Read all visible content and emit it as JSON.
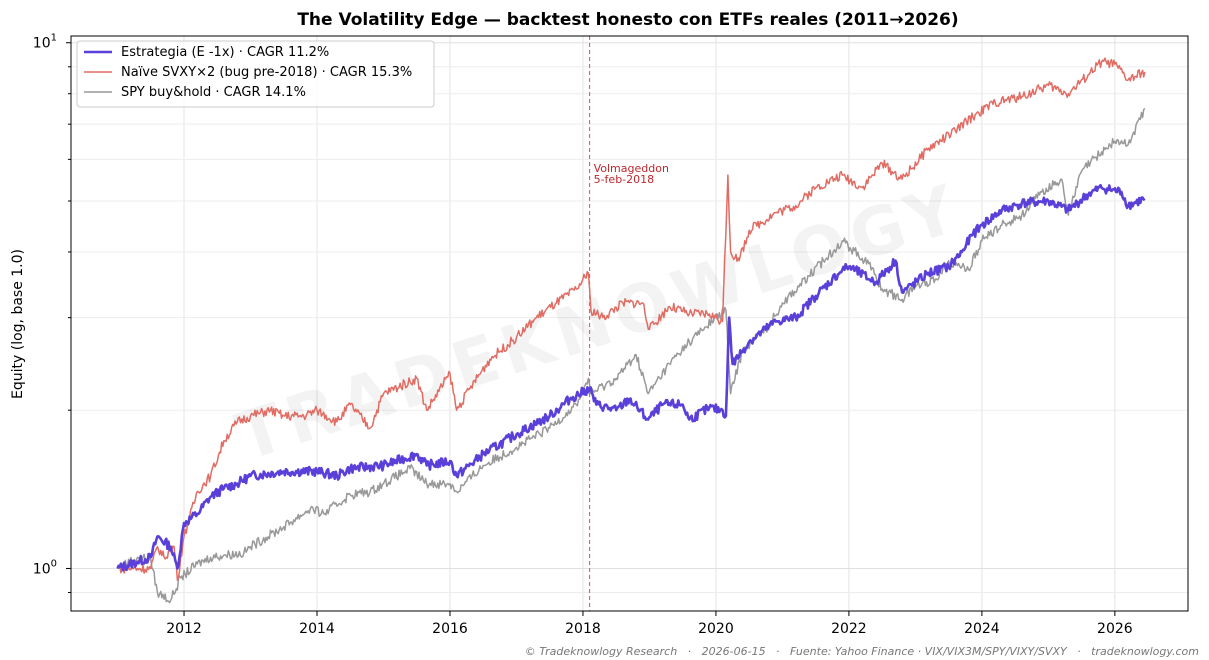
{
  "chart_data": {
    "type": "line",
    "title": "The Volatility Edge — backtest honesto con ETFs reales (2011→2026)",
    "ylabel": "Equity (log, base 1.0)",
    "xlabel": "",
    "y_scale": "log",
    "xlim": [
      2010.3,
      2027.1
    ],
    "ylim": [
      0.83,
      10.3
    ],
    "x_ticks": [
      2012,
      2014,
      2016,
      2018,
      2020,
      2022,
      2024,
      2026
    ],
    "y_ticks": [
      {
        "value": 1,
        "base": "10",
        "exp": "0"
      },
      {
        "value": 10,
        "base": "10",
        "exp": "1"
      }
    ],
    "grid": true,
    "legend_position": "top-left",
    "series": [
      {
        "name": "Estrategia (E -1x) · CAGR 11.2%",
        "color": "#5b3fd9",
        "width": 2.6,
        "points": [
          [
            2011.0,
            1.0
          ],
          [
            2011.3,
            1.03
          ],
          [
            2011.5,
            1.05
          ],
          [
            2011.6,
            1.15
          ],
          [
            2011.8,
            1.1
          ],
          [
            2011.9,
            1.0
          ],
          [
            2012.0,
            1.22
          ],
          [
            2012.2,
            1.27
          ],
          [
            2012.4,
            1.37
          ],
          [
            2012.6,
            1.42
          ],
          [
            2012.8,
            1.45
          ],
          [
            2013.0,
            1.5
          ],
          [
            2013.5,
            1.53
          ],
          [
            2014.0,
            1.53
          ],
          [
            2014.3,
            1.5
          ],
          [
            2014.5,
            1.55
          ],
          [
            2015.0,
            1.57
          ],
          [
            2015.5,
            1.65
          ],
          [
            2015.65,
            1.57
          ],
          [
            2016.0,
            1.6
          ],
          [
            2016.1,
            1.5
          ],
          [
            2016.5,
            1.65
          ],
          [
            2017.0,
            1.8
          ],
          [
            2017.5,
            1.95
          ],
          [
            2017.8,
            2.1
          ],
          [
            2018.1,
            2.2
          ],
          [
            2018.2,
            2.05
          ],
          [
            2018.5,
            2.0
          ],
          [
            2018.7,
            2.1
          ],
          [
            2018.98,
            1.92
          ],
          [
            2019.2,
            2.05
          ],
          [
            2019.5,
            2.05
          ],
          [
            2019.6,
            1.92
          ],
          [
            2019.9,
            2.02
          ],
          [
            2020.1,
            2.0
          ],
          [
            2020.15,
            1.95
          ],
          [
            2020.2,
            3.0
          ],
          [
            2020.25,
            2.45
          ],
          [
            2020.5,
            2.7
          ],
          [
            2020.9,
            2.95
          ],
          [
            2021.2,
            3.0
          ],
          [
            2021.5,
            3.3
          ],
          [
            2021.9,
            3.7
          ],
          [
            2022.0,
            3.75
          ],
          [
            2022.4,
            3.5
          ],
          [
            2022.7,
            3.85
          ],
          [
            2022.8,
            3.35
          ],
          [
            2023.2,
            3.65
          ],
          [
            2023.5,
            3.75
          ],
          [
            2023.7,
            4.0
          ],
          [
            2023.85,
            4.3
          ],
          [
            2024.0,
            4.5
          ],
          [
            2024.3,
            4.8
          ],
          [
            2024.6,
            4.95
          ],
          [
            2025.0,
            5.0
          ],
          [
            2025.3,
            4.8
          ],
          [
            2025.6,
            5.15
          ],
          [
            2025.8,
            5.3
          ],
          [
            2026.1,
            5.2
          ],
          [
            2026.2,
            4.9
          ],
          [
            2026.45,
            5.05
          ]
        ]
      },
      {
        "name": "Naïve SVXY×2 (bug pre-2018) · CAGR 15.3%",
        "color": "#e06c63",
        "width": 1.5,
        "points": [
          [
            2011.0,
            1.0
          ],
          [
            2011.3,
            1.0
          ],
          [
            2011.5,
            1.0
          ],
          [
            2011.6,
            1.1
          ],
          [
            2011.7,
            1.05
          ],
          [
            2011.85,
            1.1
          ],
          [
            2011.9,
            0.95
          ],
          [
            2012.0,
            1.15
          ],
          [
            2012.2,
            1.4
          ],
          [
            2012.4,
            1.5
          ],
          [
            2012.6,
            1.75
          ],
          [
            2012.8,
            1.9
          ],
          [
            2013.0,
            1.95
          ],
          [
            2013.3,
            2.0
          ],
          [
            2013.5,
            1.95
          ],
          [
            2013.8,
            1.95
          ],
          [
            2014.0,
            2.0
          ],
          [
            2014.3,
            1.9
          ],
          [
            2014.5,
            2.05
          ],
          [
            2014.8,
            1.85
          ],
          [
            2015.0,
            2.15
          ],
          [
            2015.5,
            2.3
          ],
          [
            2015.65,
            2.0
          ],
          [
            2016.0,
            2.35
          ],
          [
            2016.1,
            2.0
          ],
          [
            2016.3,
            2.2
          ],
          [
            2016.6,
            2.5
          ],
          [
            2017.0,
            2.75
          ],
          [
            2017.3,
            3.0
          ],
          [
            2017.6,
            3.2
          ],
          [
            2017.9,
            3.4
          ],
          [
            2018.08,
            3.65
          ],
          [
            2018.12,
            3.1
          ],
          [
            2018.3,
            3.0
          ],
          [
            2018.6,
            3.2
          ],
          [
            2018.9,
            3.2
          ],
          [
            2019.0,
            2.85
          ],
          [
            2019.3,
            3.15
          ],
          [
            2019.6,
            3.05
          ],
          [
            2019.9,
            3.05
          ],
          [
            2020.1,
            2.95
          ],
          [
            2020.18,
            5.6
          ],
          [
            2020.22,
            4.0
          ],
          [
            2020.35,
            3.85
          ],
          [
            2020.5,
            4.4
          ],
          [
            2020.9,
            4.75
          ],
          [
            2021.2,
            4.9
          ],
          [
            2021.5,
            5.3
          ],
          [
            2021.9,
            5.6
          ],
          [
            2022.2,
            5.3
          ],
          [
            2022.5,
            5.9
          ],
          [
            2022.8,
            5.5
          ],
          [
            2023.2,
            6.3
          ],
          [
            2023.6,
            6.8
          ],
          [
            2023.9,
            7.3
          ],
          [
            2024.2,
            7.7
          ],
          [
            2024.6,
            7.9
          ],
          [
            2025.0,
            8.3
          ],
          [
            2025.3,
            8.0
          ],
          [
            2025.6,
            8.7
          ],
          [
            2025.8,
            9.2
          ],
          [
            2026.0,
            9.1
          ],
          [
            2026.2,
            8.5
          ],
          [
            2026.45,
            8.8
          ]
        ]
      },
      {
        "name": "SPY buy&hold · CAGR 14.1%",
        "color": "#999999",
        "width": 1.5,
        "points": [
          [
            2011.0,
            1.0
          ],
          [
            2011.3,
            1.05
          ],
          [
            2011.5,
            1.04
          ],
          [
            2011.6,
            0.9
          ],
          [
            2011.8,
            0.87
          ],
          [
            2011.95,
            0.96
          ],
          [
            2012.2,
            1.02
          ],
          [
            2012.4,
            1.05
          ],
          [
            2012.6,
            1.06
          ],
          [
            2012.9,
            1.07
          ],
          [
            2013.0,
            1.1
          ],
          [
            2013.5,
            1.2
          ],
          [
            2013.9,
            1.3
          ],
          [
            2014.1,
            1.27
          ],
          [
            2014.5,
            1.38
          ],
          [
            2014.8,
            1.4
          ],
          [
            2015.0,
            1.45
          ],
          [
            2015.4,
            1.55
          ],
          [
            2015.65,
            1.45
          ],
          [
            2016.0,
            1.45
          ],
          [
            2016.1,
            1.4
          ],
          [
            2016.5,
            1.57
          ],
          [
            2017.0,
            1.7
          ],
          [
            2017.5,
            1.85
          ],
          [
            2017.9,
            2.05
          ],
          [
            2018.08,
            2.3
          ],
          [
            2018.12,
            2.15
          ],
          [
            2018.5,
            2.3
          ],
          [
            2018.8,
            2.55
          ],
          [
            2018.98,
            2.15
          ],
          [
            2019.3,
            2.45
          ],
          [
            2019.6,
            2.7
          ],
          [
            2020.0,
            3.0
          ],
          [
            2020.15,
            3.1
          ],
          [
            2020.22,
            2.15
          ],
          [
            2020.4,
            2.6
          ],
          [
            2020.8,
            2.9
          ],
          [
            2021.0,
            3.2
          ],
          [
            2021.4,
            3.6
          ],
          [
            2021.9,
            4.2
          ],
          [
            2022.3,
            3.8
          ],
          [
            2022.5,
            3.4
          ],
          [
            2022.8,
            3.25
          ],
          [
            2023.0,
            3.45
          ],
          [
            2023.3,
            3.55
          ],
          [
            2023.5,
            3.85
          ],
          [
            2023.8,
            3.7
          ],
          [
            2024.0,
            4.2
          ],
          [
            2024.3,
            4.5
          ],
          [
            2024.6,
            4.7
          ],
          [
            2024.9,
            5.2
          ],
          [
            2025.2,
            5.5
          ],
          [
            2025.3,
            4.7
          ],
          [
            2025.5,
            5.7
          ],
          [
            2025.8,
            6.2
          ],
          [
            2026.0,
            6.5
          ],
          [
            2026.2,
            6.4
          ],
          [
            2026.45,
            7.5
          ]
        ]
      }
    ],
    "annotations": [
      {
        "x": 2018.1,
        "lines": [
          "Volmageddon",
          "5-feb-2018"
        ]
      }
    ]
  },
  "watermark": "TRADEKNOWLOGY",
  "footer": "© Tradeknowlogy Research   ·   2026-06-15   ·   Fuente: Yahoo Finance · VIX/VIX3M/SPY/VIXY/SVXY   ·   tradeknowlogy.com"
}
